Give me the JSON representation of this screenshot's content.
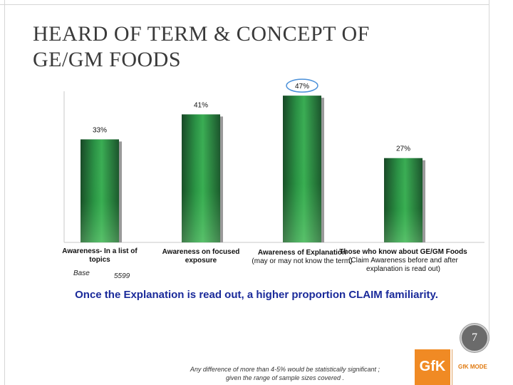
{
  "slide": {
    "title_line1": "HEARD OF TERM & CONCEPT OF",
    "title_line2": "GE/GM FOODS",
    "note": "Once the Explanation is read out, a higher proportion CLAIM familiarity.",
    "page_number": "7",
    "footnote_line1": "Any difference of more than 4-5% would be statistically significant ;",
    "footnote_line2": "given the range of sample sizes covered .",
    "logo_text": "GfK",
    "logo_tagline": "GfK MODE"
  },
  "chart_data": {
    "type": "bar",
    "categories": [
      {
        "label": "Awareness- In a list of topics",
        "sub": ""
      },
      {
        "label": "Awareness on focused exposure",
        "sub": ""
      },
      {
        "label": "Awareness of Explanation",
        "sub": "(may or may not know the term)"
      },
      {
        "label": "Those who know about GE/GM Foods",
        "sub": "(Claim Awareness before and after explanation is read out)"
      }
    ],
    "values": [
      33,
      41,
      47,
      27
    ],
    "data_labels": [
      "33%",
      "41%",
      "47%",
      "27%"
    ],
    "highlighted_index": 2,
    "ylim": [
      0,
      50
    ],
    "bar_color": "#1e8a3a",
    "bar_color_light": "#6fcf78",
    "bar_color_dark": "#0b3d1a",
    "highlight_color": "#4a90d9",
    "base_label": "Base",
    "base_value": "5599",
    "grid": false,
    "xlabel": "",
    "ylabel": "",
    "title": ""
  }
}
